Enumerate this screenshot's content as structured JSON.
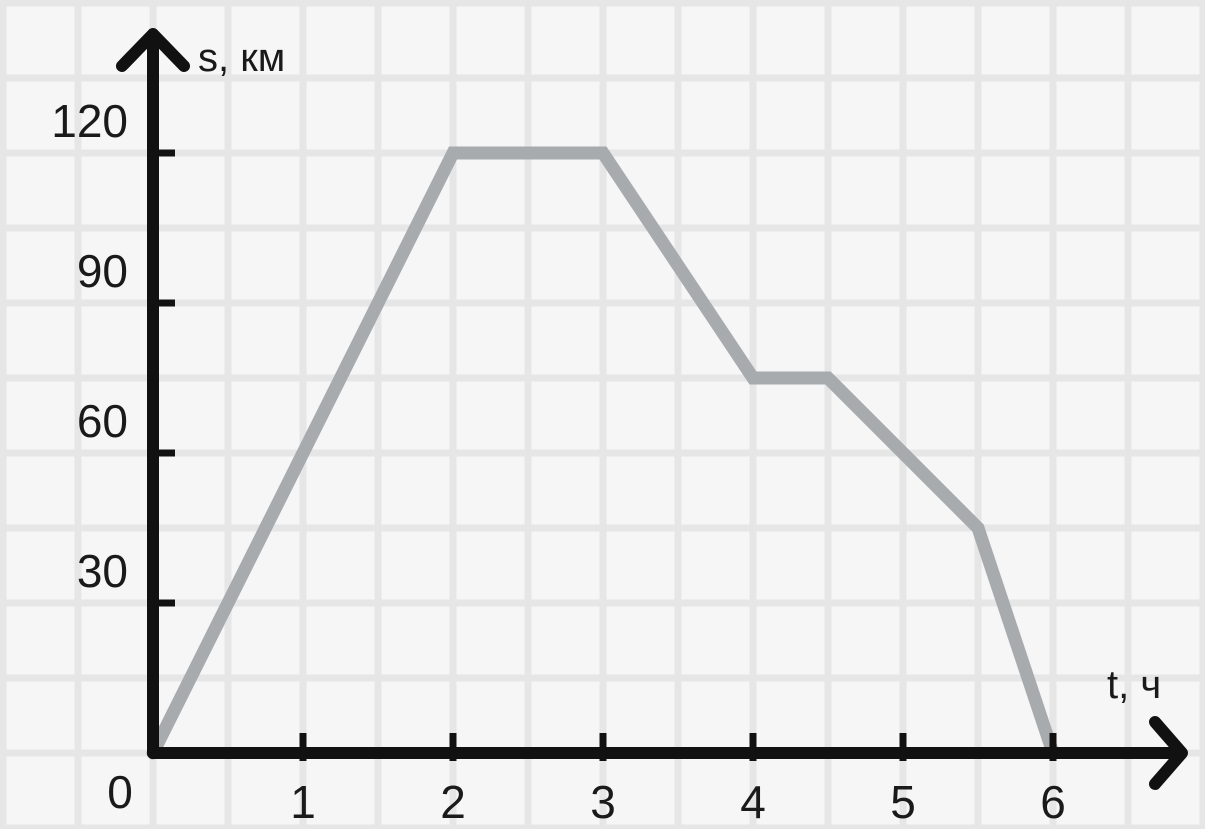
{
  "chart_data": {
    "type": "line",
    "xlabel": "t, ч",
    "ylabel": "s, км",
    "origin_label": "0",
    "xlim": [
      0,
      7
    ],
    "ylim": [
      0,
      140
    ],
    "x_ticks": [
      1,
      2,
      3,
      4,
      5,
      6
    ],
    "y_ticks": [
      30,
      60,
      90,
      120
    ],
    "grid": true,
    "grid_minor_x": 0.5,
    "grid_minor_y": 15,
    "series": [
      {
        "x": [
          0,
          2,
          3,
          4,
          4.5,
          5.5,
          6
        ],
        "y": [
          0,
          120,
          120,
          75,
          75,
          45,
          0
        ]
      }
    ],
    "colors": {
      "line": "#a7abad",
      "axis": "#111111",
      "grid": "#e6e6e6",
      "background": "#f6f6f6"
    }
  }
}
